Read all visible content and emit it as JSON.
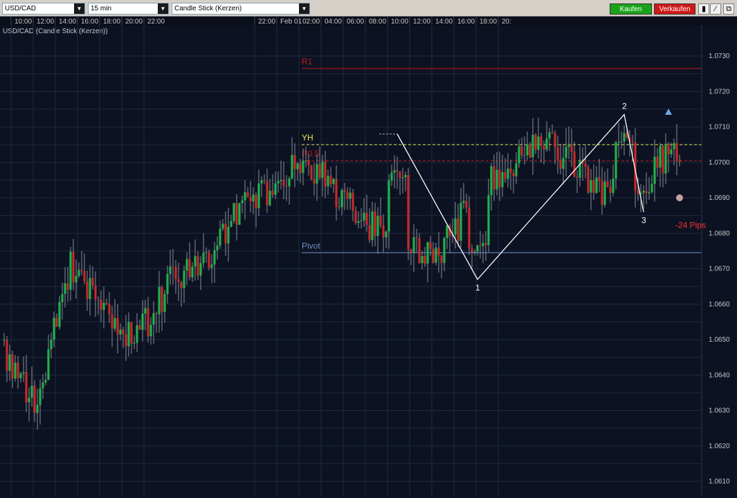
{
  "toolbar": {
    "symbol": "USD/CAD",
    "interval": "15 min",
    "chart_type": "Candle Stick (Kerzen)",
    "buy_label": "Kaufen",
    "sell_label": "Verkaufen",
    "icons": [
      "bar-chart-icon",
      "draw-line-icon",
      "popout-icon"
    ]
  },
  "colors": {
    "background": "#0c1221",
    "grid": "#1e2a44",
    "bull": "#22b14c",
    "bear": "#c42b2b",
    "buy_button": "#1aa31a",
    "sell_button": "#d01818",
    "r1": "#c41a1a",
    "yh": "#e8e84a",
    "pivot": "#6f8fc8",
    "pattern": "#ffffff"
  },
  "chart_data": {
    "type": "candlestick",
    "title": "USD/CAD (Candle Stick (Kerzen))",
    "symbol": "USD/CAD",
    "interval": "15 min",
    "time_axis_labels": [
      "10:00",
      "12:00",
      "14:00",
      "16:00",
      "18:00",
      "20:00",
      "22:00",
      "22:00",
      "Feb 01",
      "02:00",
      "04:00",
      "06:00",
      "08:00",
      "10:00",
      "12:00",
      "14:00",
      "16:00",
      "18:00",
      "20:"
    ],
    "y_tick_labels": [
      "1.0730",
      "1.0720",
      "1.0710",
      "1.0700",
      "1.0690",
      "1.0680",
      "1.0670",
      "1.0660",
      "1.0650",
      "1.0640",
      "1.0630",
      "1.0620",
      "1.0610"
    ],
    "ylim": [
      1.0607,
      1.0743
    ],
    "grid": true,
    "levels": [
      {
        "label": "R1",
        "value": 1.07265,
        "style": "solid",
        "color": "#c41a1a"
      },
      {
        "label": "YH",
        "value": 1.0705,
        "style": "dashed",
        "color": "#e8e84a"
      },
      {
        "label": "R0,5",
        "value": 1.07005,
        "style": "dashed",
        "color": "#c41a1a"
      },
      {
        "label": "Pivot",
        "value": 1.06745,
        "style": "solid",
        "color": "#6f8fc8"
      }
    ],
    "pattern_points": [
      {
        "label": "",
        "index": 142,
        "price": 1.0708
      },
      {
        "label": "1",
        "index": 171,
        "price": 1.0667
      },
      {
        "label": "2",
        "index": 224,
        "price": 1.07135
      },
      {
        "label": "3",
        "index": 231,
        "price": 1.0686
      }
    ],
    "annotations": [
      {
        "text": "-24 Pips",
        "index": 244,
        "price": 1.0685,
        "color": "#ff3030"
      },
      {
        "type": "triangle-marker",
        "index": 240,
        "price": 1.0714,
        "color": "#6aa8e8"
      },
      {
        "type": "circle-marker",
        "index": 244,
        "price": 1.069,
        "color": "#c8a0a0"
      }
    ],
    "start_time": "2011-01-31T09:15",
    "bar_minutes": 15,
    "period_bars": 96,
    "period_hours": [
      9,
      11,
      13,
      15,
      17,
      19,
      21,
      23,
      1,
      3,
      5,
      7,
      9,
      11,
      13,
      15,
      17,
      19,
      21,
      23
    ],
    "period_close": [
      1.0645,
      1.0632,
      1.0672,
      1.0658,
      1.065,
      1.0666,
      1.0672,
      1.0685,
      1.0692,
      1.0702,
      1.0691,
      1.0683,
      1.0677,
      1.0672,
      1.0688,
      1.0697,
      1.0706,
      1.0702,
      1.0692,
      1.0698,
      1.0702,
      1.0708,
      1.0696,
      1.0683,
      1.0672,
      1.0658,
      1.0648,
      1.0638,
      1.0631
    ],
    "count": 329,
    "seed": 20110201,
    "volatility": 0.00045
  }
}
